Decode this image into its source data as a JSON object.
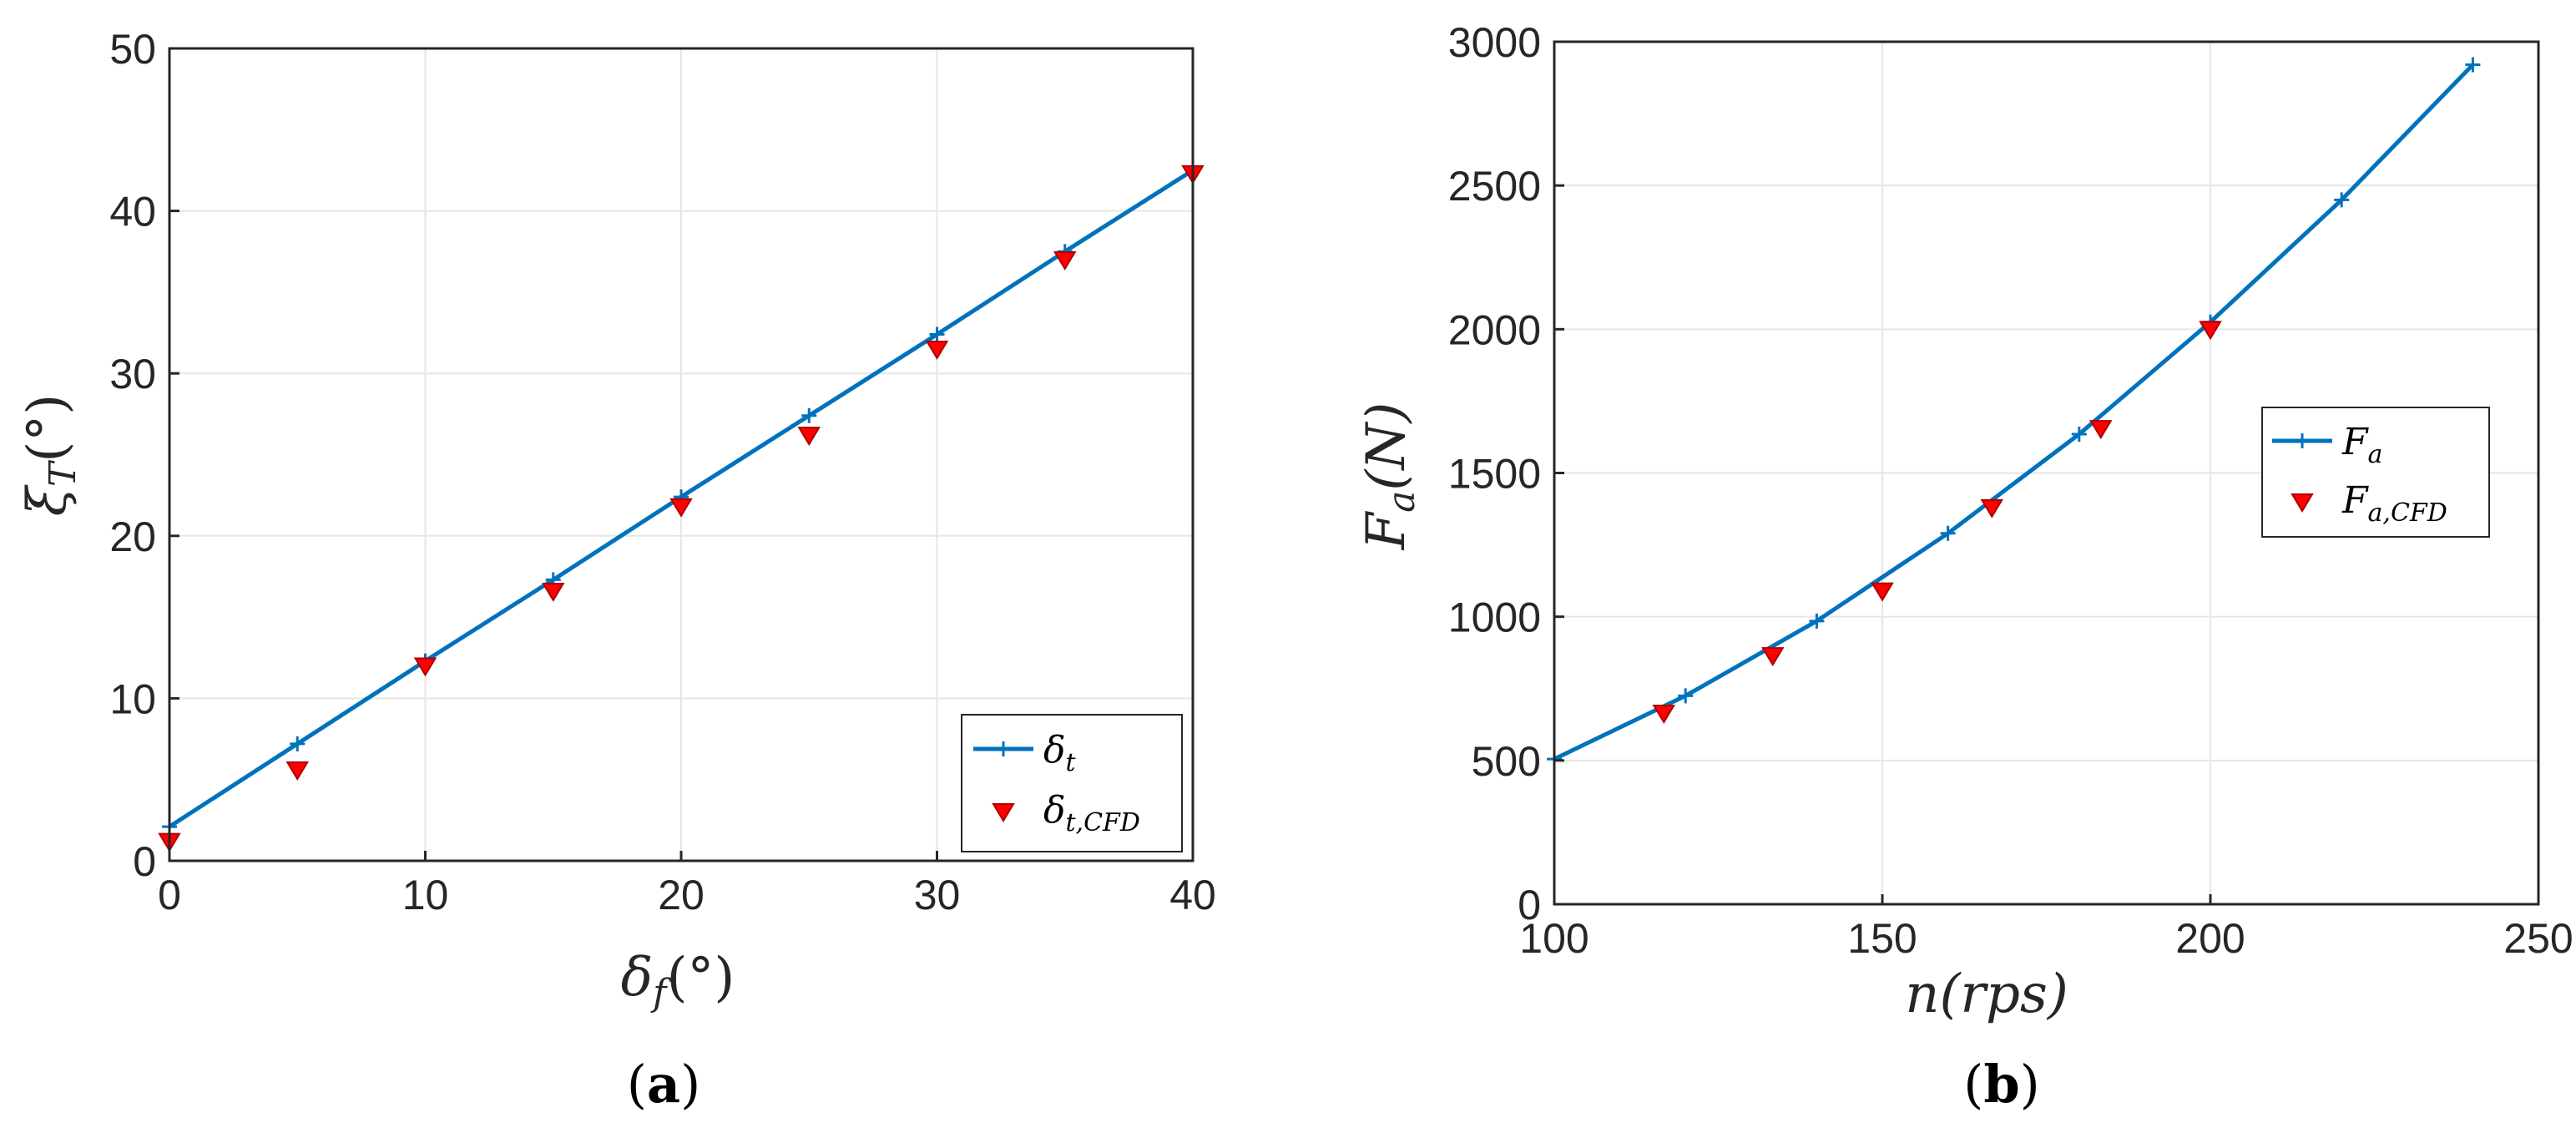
{
  "colors": {
    "line": "#0072BD",
    "cfd_marker": "#FF0000",
    "cfd_marker_edge": "#B00000",
    "grid": "#E6E6E6",
    "axis": "#262626"
  },
  "charts": [
    {
      "caption": {
        "open": "(",
        "letter": "a",
        "close": ")"
      },
      "xlabel": {
        "main": "δ",
        "sub": "f",
        "unit": "(°)"
      },
      "ylabel": {
        "main": "ξ",
        "sub": "T",
        "unit": "(°)"
      },
      "legend": [
        {
          "main": "δ",
          "sub": "t"
        },
        {
          "main": "δ",
          "sub": "t,CFD"
        }
      ]
    },
    {
      "caption": {
        "open": "(",
        "letter": "b",
        "close": ")"
      },
      "xlabel": {
        "main": "n(rps)",
        "sub": "",
        "unit": ""
      },
      "ylabel": {
        "main": "F",
        "sub": "a",
        "unit": "(N)"
      },
      "legend": [
        {
          "main": "F",
          "sub": "a"
        },
        {
          "main": "F",
          "sub": "a,CFD"
        }
      ]
    }
  ],
  "chart_data": [
    {
      "type": "line",
      "xlim": [
        0,
        40
      ],
      "ylim": [
        0,
        50
      ],
      "xticks": [
        0,
        10,
        20,
        30,
        40
      ],
      "yticks": [
        0,
        10,
        20,
        30,
        40,
        50
      ],
      "grid": true,
      "legend_position": "bottom-right",
      "series": [
        {
          "name": "δt",
          "style": "line-plus",
          "x": [
            0,
            5,
            10,
            15,
            20,
            25,
            30,
            35,
            40
          ],
          "y": [
            2.1,
            7.2,
            12.3,
            17.3,
            22.4,
            27.4,
            32.4,
            37.5,
            42.5
          ]
        },
        {
          "name": "δt,CFD",
          "style": "triangle-down",
          "x": [
            0,
            5,
            10,
            15,
            20,
            25,
            30,
            35,
            40
          ],
          "y": [
            1.2,
            5.6,
            12.0,
            16.6,
            21.8,
            26.2,
            31.5,
            37.0,
            42.3
          ]
        }
      ]
    },
    {
      "type": "line",
      "xlim": [
        100,
        250
      ],
      "ylim": [
        0,
        3000
      ],
      "xticks": [
        100,
        150,
        200,
        250
      ],
      "yticks": [
        0,
        500,
        1000,
        1500,
        2000,
        2500,
        3000
      ],
      "grid": true,
      "legend_position": "middle-right",
      "series": [
        {
          "name": "Fa",
          "style": "line-plus",
          "x": [
            100,
            120,
            140,
            160,
            180,
            200,
            220,
            240
          ],
          "y": [
            505,
            725,
            985,
            1290,
            1635,
            2025,
            2450,
            2920
          ]
        },
        {
          "name": "Fa,CFD",
          "style": "triangle-down",
          "x": [
            116.7,
            133.3,
            150,
            166.7,
            183.3,
            200
          ],
          "y": [
            665,
            865,
            1090,
            1380,
            1655,
            2000
          ]
        }
      ]
    }
  ]
}
